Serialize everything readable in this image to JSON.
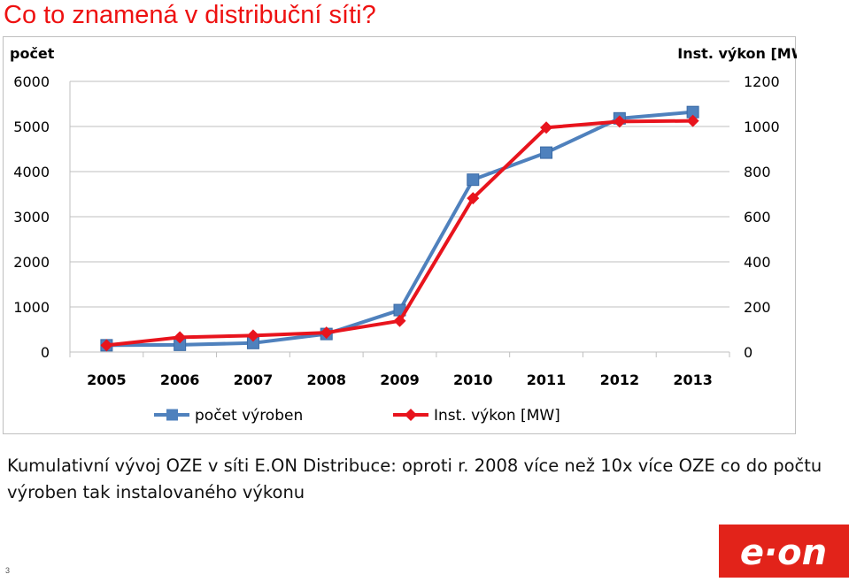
{
  "slide": {
    "title": "Co to znamená v distribuční síti?",
    "caption": "Kumulativní vývoj OZE v síti E.ON Distribuce: oproti r. 2008 více než 10x více OZE co do počtu výroben tak instalovaného výkonu",
    "page_number": "3",
    "logo_text": "e·on"
  },
  "colors": {
    "title": "#ee1111",
    "series_count": "#4f81bd",
    "series_power": "#e8141d",
    "logo_bg": "#e2231a"
  },
  "chart_data": {
    "type": "line",
    "categories": [
      "2005",
      "2006",
      "2007",
      "2008",
      "2009",
      "2010",
      "2011",
      "2012",
      "2013"
    ],
    "y_left": {
      "title": "počet",
      "ylim": [
        0,
        6000
      ],
      "ticks": [
        0,
        1000,
        2000,
        3000,
        4000,
        5000,
        6000
      ]
    },
    "y_right": {
      "title": "Inst. výkon [MW]",
      "ylim": [
        0,
        1200
      ],
      "ticks": [
        0,
        200,
        400,
        600,
        800,
        1000,
        1200
      ]
    },
    "grid": true,
    "legend_position": "bottom",
    "series": [
      {
        "name": "počet výroben",
        "axis": "left",
        "marker": "square",
        "color": "#4f81bd",
        "values": [
          150,
          160,
          200,
          400,
          930,
          3820,
          4420,
          5180,
          5320
        ]
      },
      {
        "name": "Inst. výkon [MW]",
        "axis": "right",
        "marker": "diamond",
        "color": "#e8141d",
        "values": [
          30,
          65,
          73,
          86,
          138,
          682,
          995,
          1022,
          1025
        ]
      }
    ]
  }
}
